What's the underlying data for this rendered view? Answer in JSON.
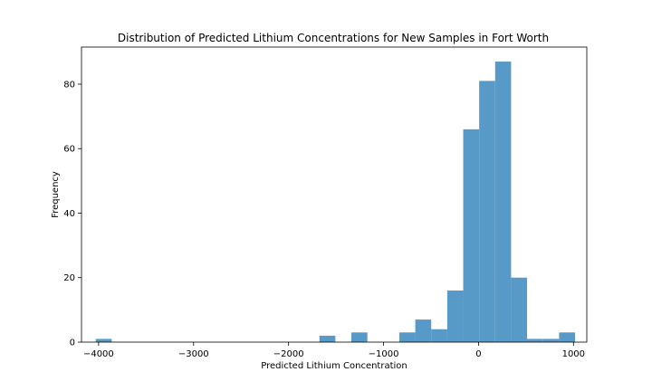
{
  "chart_data": {
    "type": "bar",
    "title": "Distribution of Predicted Lithium Concentrations for New Samples in Fort Worth",
    "xlabel": "Predicted Lithium Concentration",
    "ylabel": "Frequency",
    "xlim": [
      -4180,
      1140
    ],
    "ylim": [
      0,
      91.5
    ],
    "xticks": [
      -4000,
      -3000,
      -2000,
      -1000,
      0,
      1000
    ],
    "xtick_labels": [
      "−4000",
      "−3000",
      "−2000",
      "−1000",
      "0",
      "1000"
    ],
    "yticks": [
      0,
      20,
      40,
      60,
      80
    ],
    "ytick_labels": [
      "0",
      "20",
      "40",
      "60",
      "80"
    ],
    "grid": false,
    "bar_color": "#5799c7",
    "bins": [
      {
        "x0": -4030,
        "x1": -3862,
        "count": 1
      },
      {
        "x0": -1675,
        "x1": -1507,
        "count": 2
      },
      {
        "x0": -1339,
        "x1": -1170,
        "count": 3
      },
      {
        "x0": -834,
        "x1": -666,
        "count": 3
      },
      {
        "x0": -666,
        "x1": -498,
        "count": 7
      },
      {
        "x0": -498,
        "x1": -329,
        "count": 4
      },
      {
        "x0": -329,
        "x1": -161,
        "count": 16
      },
      {
        "x0": -161,
        "x1": 7,
        "count": 66
      },
      {
        "x0": 7,
        "x1": 175,
        "count": 81
      },
      {
        "x0": 175,
        "x1": 343,
        "count": 87
      },
      {
        "x0": 343,
        "x1": 511,
        "count": 20
      },
      {
        "x0": 511,
        "x1": 680,
        "count": 1
      },
      {
        "x0": 680,
        "x1": 848,
        "count": 1
      },
      {
        "x0": 848,
        "x1": 1016,
        "count": 3
      }
    ]
  }
}
